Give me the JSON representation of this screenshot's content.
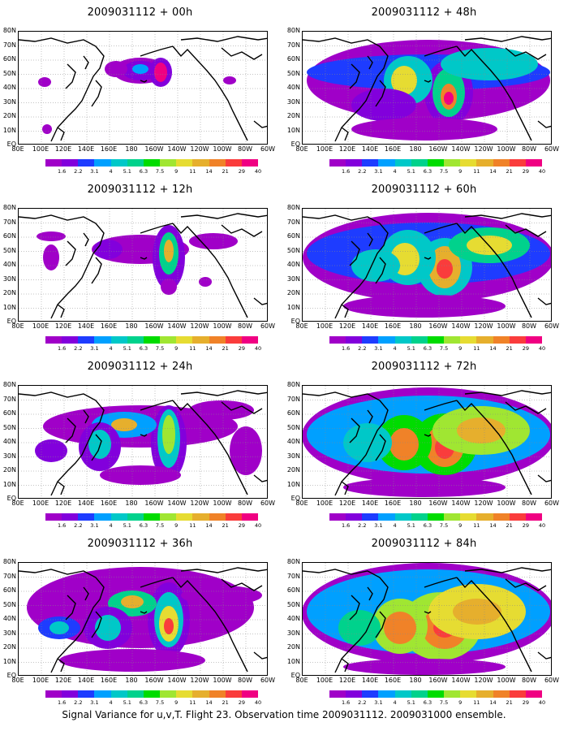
{
  "caption": "Signal Variance for u,v,T. Flight 23. Observation time 2009031112. 2009031000 ensemble.",
  "lat_labels": [
    "80N",
    "70N",
    "60N",
    "50N",
    "40N",
    "30N",
    "20N",
    "10N",
    "EQ"
  ],
  "lon_labels": [
    "80E",
    "100E",
    "120E",
    "140E",
    "160E",
    "180",
    "160W",
    "140W",
    "120W",
    "100W",
    "80W",
    "60W"
  ],
  "colorbar": {
    "levels": [
      "1.6",
      "2.2",
      "3.1",
      "4",
      "5.1",
      "6.3",
      "7.5",
      "9",
      "11",
      "14",
      "21",
      "29",
      "40"
    ],
    "colors": [
      "#a000c8",
      "#8200dc",
      "#1e3cff",
      "#00a0ff",
      "#00c8c8",
      "#00d28c",
      "#00dc00",
      "#a0e632",
      "#e6dc32",
      "#e6af2d",
      "#f08228",
      "#fa3c3c",
      "#f00082"
    ]
  },
  "panels": [
    {
      "title": "2009031112 + 00h",
      "lead_hours": 0
    },
    {
      "title": "2009031112 + 48h",
      "lead_hours": 48
    },
    {
      "title": "2009031112 + 12h",
      "lead_hours": 12
    },
    {
      "title": "2009031112 + 60h",
      "lead_hours": 60
    },
    {
      "title": "2009031112 + 24h",
      "lead_hours": 24
    },
    {
      "title": "2009031112 + 72h",
      "lead_hours": 72
    },
    {
      "title": "2009031112 + 36h",
      "lead_hours": 36
    },
    {
      "title": "2009031112 + 84h",
      "lead_hours": 84
    }
  ]
}
